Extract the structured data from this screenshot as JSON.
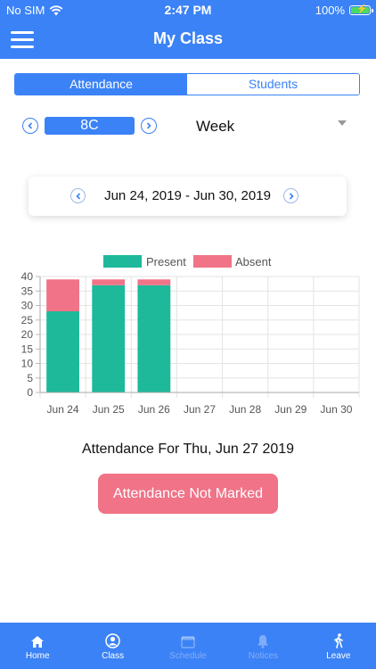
{
  "status_bar": {
    "carrier": "No SIM",
    "time": "2:47 PM",
    "battery": "100%",
    "battery_level": 1.0
  },
  "nav": {
    "title": "My Class"
  },
  "segments": [
    {
      "label": "Attendance",
      "active": true
    },
    {
      "label": "Students",
      "active": false
    }
  ],
  "class_selector": {
    "value": "8C"
  },
  "period": {
    "label": "Week"
  },
  "date_range": {
    "label": "Jun 24, 2019 - Jun 30, 2019"
  },
  "chart_data": {
    "type": "bar",
    "stacked": true,
    "categories": [
      "Jun 24",
      "Jun 25",
      "Jun 26",
      "Jun 27",
      "Jun 28",
      "Jun 29",
      "Jun 30"
    ],
    "series": [
      {
        "name": "Present",
        "color": "#1db99a",
        "values": [
          28,
          37,
          37,
          0,
          0,
          0,
          0
        ]
      },
      {
        "name": "Absent",
        "color": "#f07387",
        "values": [
          11,
          2,
          2,
          0,
          0,
          0,
          0
        ]
      }
    ],
    "ylim": [
      0,
      40
    ],
    "yticks": [
      0,
      5,
      10,
      15,
      20,
      25,
      30,
      35,
      40
    ],
    "grid": true,
    "legend": "top"
  },
  "attendance_for": "Attendance For Thu, Jun 27 2019",
  "action_button": {
    "label": "Attendance Not Marked",
    "color": "#f07387"
  },
  "tabs": [
    {
      "label": "Home",
      "icon": "home-icon",
      "enabled": true
    },
    {
      "label": "Class",
      "icon": "person-icon",
      "enabled": true
    },
    {
      "label": "Schedule",
      "icon": "calendar-icon",
      "enabled": false
    },
    {
      "label": "Notices",
      "icon": "bell-icon",
      "enabled": false
    },
    {
      "label": "Leave",
      "icon": "walk-icon",
      "enabled": true
    }
  ],
  "colors": {
    "primary": "#3b82f6",
    "present": "#1db99a",
    "absent": "#f07387"
  }
}
